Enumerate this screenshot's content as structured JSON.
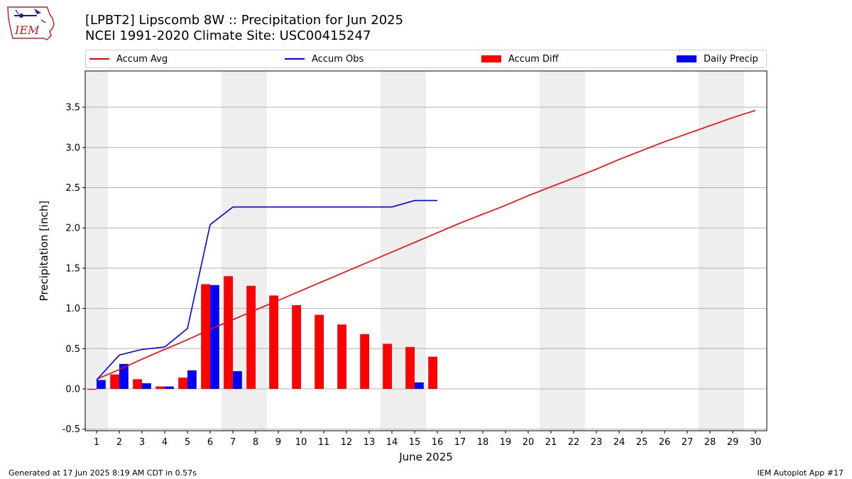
{
  "logo_text": "IEM",
  "title_line1": "[LPBT2] Lipscomb 8W :: Precipitation for Jun 2025",
  "title_line2": "NCEI 1991-2020 Climate Site: USC00415247",
  "footer_left": "Generated at 17 Jun 2025 8:19 AM CDT in 0.57s",
  "footer_right": "IEM Autoplot App #17",
  "colors": {
    "avg": "#ff0000",
    "obs": "#0000ff",
    "diff": "#ff0000",
    "daily": "#0000ff",
    "weekend_band": "#eeeeee",
    "grid": "#b0b0b0"
  },
  "chart_data": {
    "type": "bar",
    "xlabel": "June 2025",
    "ylabel": "Precipitation [inch]",
    "ylim": [
      -0.52,
      3.95
    ],
    "xlim": [
      0.5,
      30.5
    ],
    "yticks": [
      "-0.5",
      "0.0",
      "0.5",
      "1.0",
      "1.5",
      "2.0",
      "2.5",
      "3.0",
      "3.5"
    ],
    "ytick_values": [
      -0.5,
      0.0,
      0.5,
      1.0,
      1.5,
      2.0,
      2.5,
      3.0,
      3.5
    ],
    "days": [
      "1",
      "2",
      "3",
      "4",
      "5",
      "6",
      "7",
      "8",
      "9",
      "10",
      "11",
      "12",
      "13",
      "14",
      "15",
      "16",
      "17",
      "18",
      "19",
      "20",
      "21",
      "22",
      "23",
      "24",
      "25",
      "26",
      "27",
      "28",
      "29",
      "30"
    ],
    "weekend_days": [
      1,
      7,
      8,
      14,
      15,
      21,
      22,
      28,
      29
    ],
    "grid": "horizontal",
    "legend_position": "top",
    "series": [
      {
        "name": "Accum Avg",
        "kind": "line",
        "values": [
          0.12,
          0.24,
          0.37,
          0.49,
          0.61,
          0.74,
          0.86,
          0.98,
          1.1,
          1.22,
          1.34,
          1.46,
          1.58,
          1.7,
          1.82,
          1.94,
          2.06,
          2.17,
          2.28,
          2.4,
          2.51,
          2.62,
          2.73,
          2.85,
          2.96,
          3.07,
          3.17,
          3.27,
          3.37,
          3.46
        ]
      },
      {
        "name": "Accum Obs",
        "kind": "line",
        "values": [
          0.11,
          0.42,
          0.49,
          0.52,
          0.75,
          2.04,
          2.26,
          2.26,
          2.26,
          2.26,
          2.26,
          2.26,
          2.26,
          2.26,
          2.34,
          2.34
        ]
      },
      {
        "name": "Accum Diff",
        "kind": "bar",
        "values": [
          -0.01,
          0.18,
          0.12,
          0.03,
          0.14,
          1.3,
          1.4,
          1.28,
          1.16,
          1.04,
          0.92,
          0.8,
          0.68,
          0.56,
          0.52,
          0.4
        ]
      },
      {
        "name": "Daily Precip",
        "kind": "bar",
        "values": [
          0.11,
          0.31,
          0.07,
          0.03,
          0.23,
          1.29,
          0.22,
          0.0,
          0.0,
          0.0,
          0.0,
          0.0,
          0.0,
          0.0,
          0.08,
          0.0
        ]
      }
    ]
  }
}
